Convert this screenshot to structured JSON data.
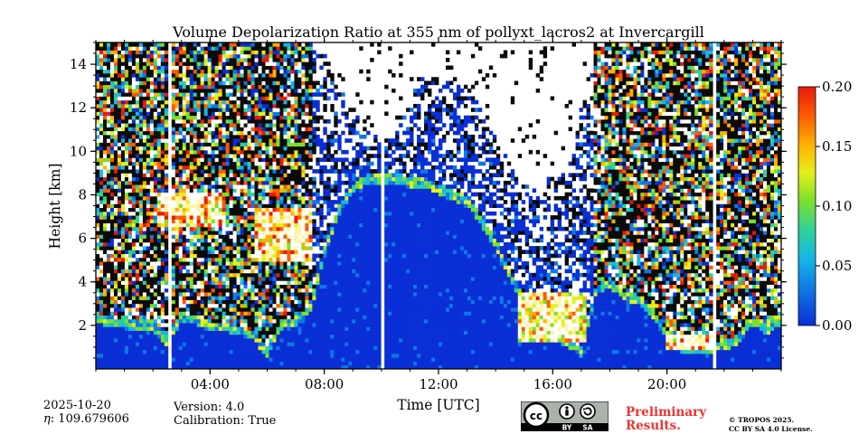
{
  "chart_data": {
    "type": "heatmap",
    "title": "Volume Depolarization Ratio at 355 nm of pollyxt_lacros2 at Invercargill",
    "xlabel": "Time [UTC]",
    "ylabel": "Height [km]",
    "xlim": [
      0,
      24
    ],
    "ylim": [
      0,
      15
    ],
    "x_ticks": [
      {
        "value": 4,
        "label": "04:00"
      },
      {
        "value": 8,
        "label": "08:00"
      },
      {
        "value": 12,
        "label": "12:00"
      },
      {
        "value": 16,
        "label": "16:00"
      },
      {
        "value": 20,
        "label": "20:00"
      }
    ],
    "y_ticks": [
      {
        "value": 2,
        "label": "2"
      },
      {
        "value": 4,
        "label": "4"
      },
      {
        "value": 6,
        "label": "6"
      },
      {
        "value": 8,
        "label": "8"
      },
      {
        "value": 10,
        "label": "10"
      },
      {
        "value": 12,
        "label": "12"
      },
      {
        "value": 14,
        "label": "14"
      }
    ],
    "colorbar": {
      "range": [
        0.0,
        0.2
      ],
      "ticks": [
        "0.00",
        "0.05",
        "0.10",
        "0.15",
        "0.20"
      ],
      "colormap": [
        "#0a2fd6",
        "#0f78e6",
        "#16b6e8",
        "#2fd19a",
        "#7be02a",
        "#e6ef1a",
        "#ffb000",
        "#ff5a00",
        "#e81a0a"
      ]
    },
    "profile_hours": [
      0,
      0.5,
      1,
      1.5,
      2,
      2.5,
      3,
      3.5,
      4,
      4.5,
      5,
      5.5,
      6,
      6.5,
      7,
      7.5,
      8,
      8.5,
      9,
      9.5,
      10,
      10.5,
      11,
      11.5,
      12,
      12.5,
      13,
      13.5,
      14,
      14.5,
      15,
      15.5,
      16,
      16.5,
      17,
      17.5,
      18,
      18.5,
      19,
      19.5,
      20,
      20.5,
      21,
      21.5,
      22,
      22.5,
      23,
      23.5,
      24
    ],
    "solid_top_km": [
      2.6,
      2.4,
      2.3,
      2.3,
      2.2,
      1.5,
      2.6,
      2.5,
      2.2,
      2.2,
      2.0,
      1.8,
      1.0,
      2.3,
      2.4,
      3.0,
      5.5,
      7.5,
      8.5,
      9.0,
      9.0,
      9.0,
      8.8,
      8.8,
      8.5,
      8.2,
      8.0,
      7.0,
      6.0,
      4.5,
      3.4,
      3.6,
      1.8,
      1.5,
      1.0,
      3.8,
      4.2,
      3.6,
      3.4,
      2.8,
      1.8,
      1.2,
      1.1,
      1.2,
      1.3,
      1.6,
      2.5,
      2.0,
      2.5
    ],
    "noise_top_km": [
      15,
      15,
      15,
      15,
      15,
      15,
      15,
      15,
      15,
      15,
      15,
      15,
      15,
      15,
      15,
      15,
      14.5,
      13,
      12,
      11,
      10.5,
      11,
      12.5,
      13.5,
      13.5,
      13.5,
      13,
      12,
      11,
      9.5,
      8.5,
      8.5,
      9,
      9,
      12,
      15,
      15,
      15,
      15,
      15,
      15,
      15,
      15,
      15,
      15,
      15,
      15,
      15,
      15
    ],
    "cloud_layers": [
      {
        "start_h": 2.2,
        "end_h": 4.6,
        "base_km": 6.6,
        "top_km": 8.2,
        "depol": 0.2
      },
      {
        "start_h": 5.6,
        "end_h": 7.6,
        "base_km": 5.0,
        "top_km": 7.4,
        "depol": 0.2
      },
      {
        "start_h": 14.8,
        "end_h": 17.2,
        "base_km": 1.2,
        "top_km": 3.6,
        "depol": 0.18
      },
      {
        "start_h": 20.0,
        "end_h": 21.6,
        "base_km": 0.9,
        "top_km": 1.6,
        "depol": 0.2
      }
    ],
    "gaps_h": [
      {
        "start_h": 2.5,
        "end_h": 2.7
      },
      {
        "start_h": 10.0,
        "end_h": 10.15
      },
      {
        "start_h": 21.55,
        "end_h": 21.72
      }
    ]
  },
  "footer": {
    "date": "2025-10-20",
    "eta_value": ": 109.679606",
    "version": "Version: 4.0",
    "calibration": "Calibration: True",
    "prelim_line1": "Preliminary",
    "prelim_line2": "Results.",
    "copyright_line1": "© TROPOS 2025.",
    "copyright_line2": "CC BY SA 4.0 License."
  },
  "license_badge": {
    "cc": "cc",
    "by": "BY",
    "sa": "SA"
  }
}
